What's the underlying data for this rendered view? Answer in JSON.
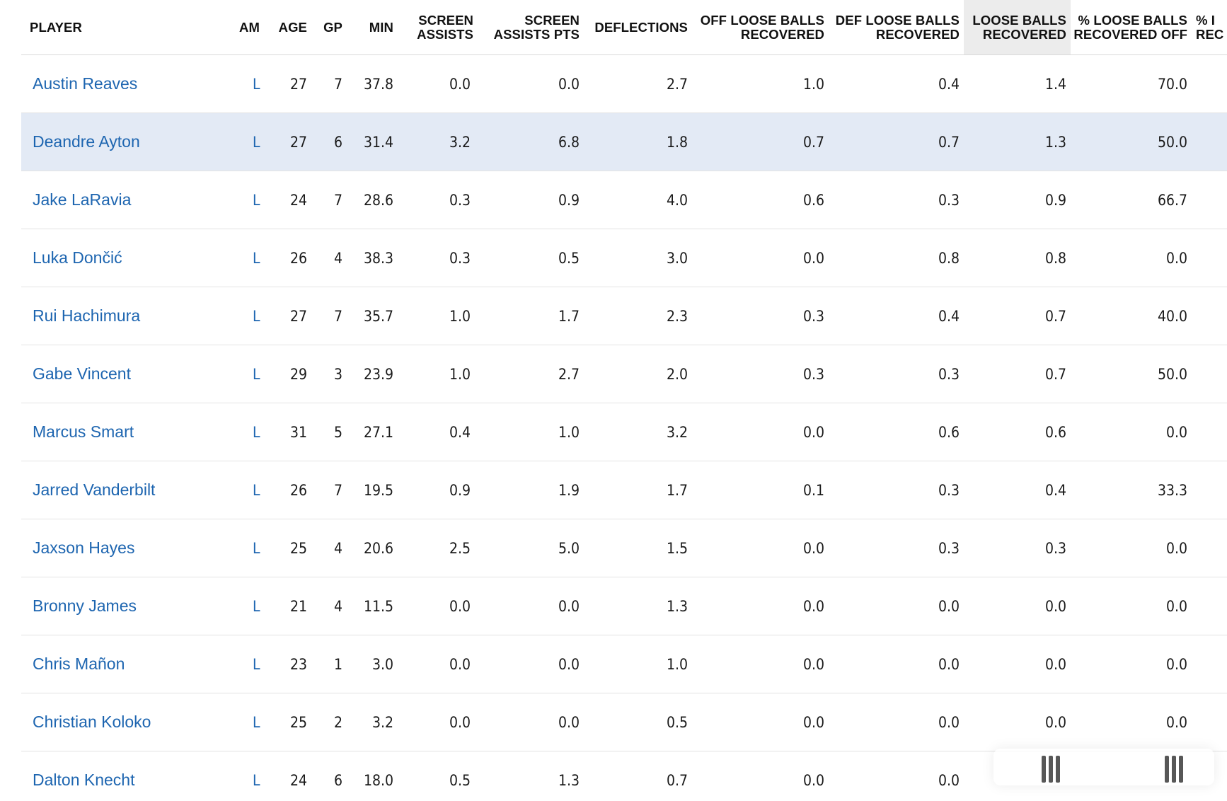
{
  "table": {
    "columns": [
      {
        "key": "player",
        "label_lines": [
          "PLAYER"
        ]
      },
      {
        "key": "team",
        "label_lines": [
          "AM"
        ]
      },
      {
        "key": "age",
        "label_lines": [
          "AGE"
        ]
      },
      {
        "key": "gp",
        "label_lines": [
          "GP"
        ]
      },
      {
        "key": "min",
        "label_lines": [
          "MIN"
        ]
      },
      {
        "key": "screen_assists",
        "label_lines": [
          "SCREEN",
          "ASSISTS"
        ]
      },
      {
        "key": "screen_assists_pts",
        "label_lines": [
          "SCREEN",
          "ASSISTS PTS"
        ]
      },
      {
        "key": "deflections",
        "label_lines": [
          "DEFLECTIONS"
        ]
      },
      {
        "key": "off_loose_balls",
        "label_lines": [
          "OFF LOOSE BALLS",
          "RECOVERED"
        ]
      },
      {
        "key": "def_loose_balls",
        "label_lines": [
          "DEF LOOSE BALLS",
          "RECOVERED"
        ]
      },
      {
        "key": "loose_balls",
        "label_lines": [
          "LOOSE BALLS",
          "RECOVERED"
        ],
        "sorted": true
      },
      {
        "key": "pct_loose_off",
        "label_lines": [
          "% LOOSE BALLS",
          "RECOVERED OFF"
        ]
      },
      {
        "key": "pct_loose_def",
        "label_lines": [
          "% I",
          "REC"
        ]
      }
    ],
    "rows": [
      {
        "player": "Austin Reaves",
        "team": "L",
        "age": "27",
        "gp": "7",
        "min": "37.8",
        "screen_assists": "0.0",
        "screen_assists_pts": "0.0",
        "deflections": "2.7",
        "off_loose_balls": "1.0",
        "def_loose_balls": "0.4",
        "loose_balls": "1.4",
        "pct_loose_off": "70.0"
      },
      {
        "player": "Deandre Ayton",
        "team": "L",
        "age": "27",
        "gp": "6",
        "min": "31.4",
        "screen_assists": "3.2",
        "screen_assists_pts": "6.8",
        "deflections": "1.8",
        "off_loose_balls": "0.7",
        "def_loose_balls": "0.7",
        "loose_balls": "1.3",
        "pct_loose_off": "50.0",
        "highlighted": true
      },
      {
        "player": "Jake LaRavia",
        "team": "L",
        "age": "24",
        "gp": "7",
        "min": "28.6",
        "screen_assists": "0.3",
        "screen_assists_pts": "0.9",
        "deflections": "4.0",
        "off_loose_balls": "0.6",
        "def_loose_balls": "0.3",
        "loose_balls": "0.9",
        "pct_loose_off": "66.7"
      },
      {
        "player": "Luka Dončić",
        "team": "L",
        "age": "26",
        "gp": "4",
        "min": "38.3",
        "screen_assists": "0.3",
        "screen_assists_pts": "0.5",
        "deflections": "3.0",
        "off_loose_balls": "0.0",
        "def_loose_balls": "0.8",
        "loose_balls": "0.8",
        "pct_loose_off": "0.0"
      },
      {
        "player": "Rui Hachimura",
        "team": "L",
        "age": "27",
        "gp": "7",
        "min": "35.7",
        "screen_assists": "1.0",
        "screen_assists_pts": "1.7",
        "deflections": "2.3",
        "off_loose_balls": "0.3",
        "def_loose_balls": "0.4",
        "loose_balls": "0.7",
        "pct_loose_off": "40.0"
      },
      {
        "player": "Gabe Vincent",
        "team": "L",
        "age": "29",
        "gp": "3",
        "min": "23.9",
        "screen_assists": "1.0",
        "screen_assists_pts": "2.7",
        "deflections": "2.0",
        "off_loose_balls": "0.3",
        "def_loose_balls": "0.3",
        "loose_balls": "0.7",
        "pct_loose_off": "50.0"
      },
      {
        "player": "Marcus Smart",
        "team": "L",
        "age": "31",
        "gp": "5",
        "min": "27.1",
        "screen_assists": "0.4",
        "screen_assists_pts": "1.0",
        "deflections": "3.2",
        "off_loose_balls": "0.0",
        "def_loose_balls": "0.6",
        "loose_balls": "0.6",
        "pct_loose_off": "0.0"
      },
      {
        "player": "Jarred Vanderbilt",
        "team": "L",
        "age": "26",
        "gp": "7",
        "min": "19.5",
        "screen_assists": "0.9",
        "screen_assists_pts": "1.9",
        "deflections": "1.7",
        "off_loose_balls": "0.1",
        "def_loose_balls": "0.3",
        "loose_balls": "0.4",
        "pct_loose_off": "33.3"
      },
      {
        "player": "Jaxson Hayes",
        "team": "L",
        "age": "25",
        "gp": "4",
        "min": "20.6",
        "screen_assists": "2.5",
        "screen_assists_pts": "5.0",
        "deflections": "1.5",
        "off_loose_balls": "0.0",
        "def_loose_balls": "0.3",
        "loose_balls": "0.3",
        "pct_loose_off": "0.0"
      },
      {
        "player": "Bronny James",
        "team": "L",
        "age": "21",
        "gp": "4",
        "min": "11.5",
        "screen_assists": "0.0",
        "screen_assists_pts": "0.0",
        "deflections": "1.3",
        "off_loose_balls": "0.0",
        "def_loose_balls": "0.0",
        "loose_balls": "0.0",
        "pct_loose_off": "0.0"
      },
      {
        "player": "Chris Mañon",
        "team": "L",
        "age": "23",
        "gp": "1",
        "min": "3.0",
        "screen_assists": "0.0",
        "screen_assists_pts": "0.0",
        "deflections": "1.0",
        "off_loose_balls": "0.0",
        "def_loose_balls": "0.0",
        "loose_balls": "0.0",
        "pct_loose_off": "0.0"
      },
      {
        "player": "Christian Koloko",
        "team": "L",
        "age": "25",
        "gp": "2",
        "min": "3.2",
        "screen_assists": "0.0",
        "screen_assists_pts": "0.0",
        "deflections": "0.5",
        "off_loose_balls": "0.0",
        "def_loose_balls": "0.0",
        "loose_balls": "0.0",
        "pct_loose_off": "0.0"
      },
      {
        "player": "Dalton Knecht",
        "team": "L",
        "age": "24",
        "gp": "6",
        "min": "18.0",
        "screen_assists": "0.5",
        "screen_assists_pts": "1.3",
        "deflections": "0.7",
        "off_loose_balls": "0.0",
        "def_loose_balls": "0.0",
        "loose_balls": "",
        "pct_loose_off": ""
      }
    ]
  },
  "colors": {
    "link": "#1d65b0",
    "highlight_row": "#e3eaf5",
    "sorted_header": "#ececec"
  },
  "icons": {
    "scroll_grip": "scroll-grip-icon"
  }
}
